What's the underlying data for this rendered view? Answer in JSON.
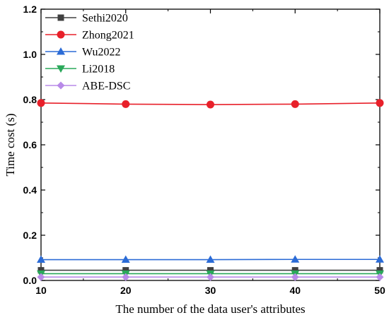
{
  "chart_data": {
    "type": "line",
    "title": "",
    "xlabel": "The number of the data user's attributes",
    "ylabel": "Time cost (s)",
    "x": [
      10,
      20,
      30,
      40,
      50
    ],
    "xticks": [
      "10",
      "20",
      "30",
      "40",
      "50"
    ],
    "yticks": [
      "0.0",
      "0.2",
      "0.4",
      "0.6",
      "0.8",
      "1.0",
      "1.2"
    ],
    "xlim": [
      10,
      50
    ],
    "ylim": [
      0,
      1.2
    ],
    "grid": false,
    "legend_position": "top-left",
    "series": [
      {
        "name": "Sethi2020",
        "color": "#404040",
        "marker": "square",
        "values": [
          0.045,
          0.045,
          0.045,
          0.045,
          0.045
        ]
      },
      {
        "name": "Zhong2021",
        "color": "#e8202a",
        "marker": "circle",
        "values": [
          0.785,
          0.78,
          0.778,
          0.78,
          0.785
        ]
      },
      {
        "name": "Wu2022",
        "color": "#2b6bd6",
        "marker": "triangle-up",
        "values": [
          0.092,
          0.092,
          0.092,
          0.093,
          0.093
        ]
      },
      {
        "name": "Li2018",
        "color": "#2aa85a",
        "marker": "triangle-down",
        "values": [
          0.03,
          0.03,
          0.03,
          0.03,
          0.03
        ]
      },
      {
        "name": "ABE-DSC",
        "color": "#b88ae8",
        "marker": "diamond",
        "values": [
          0.015,
          0.015,
          0.015,
          0.015,
          0.015
        ]
      }
    ]
  }
}
